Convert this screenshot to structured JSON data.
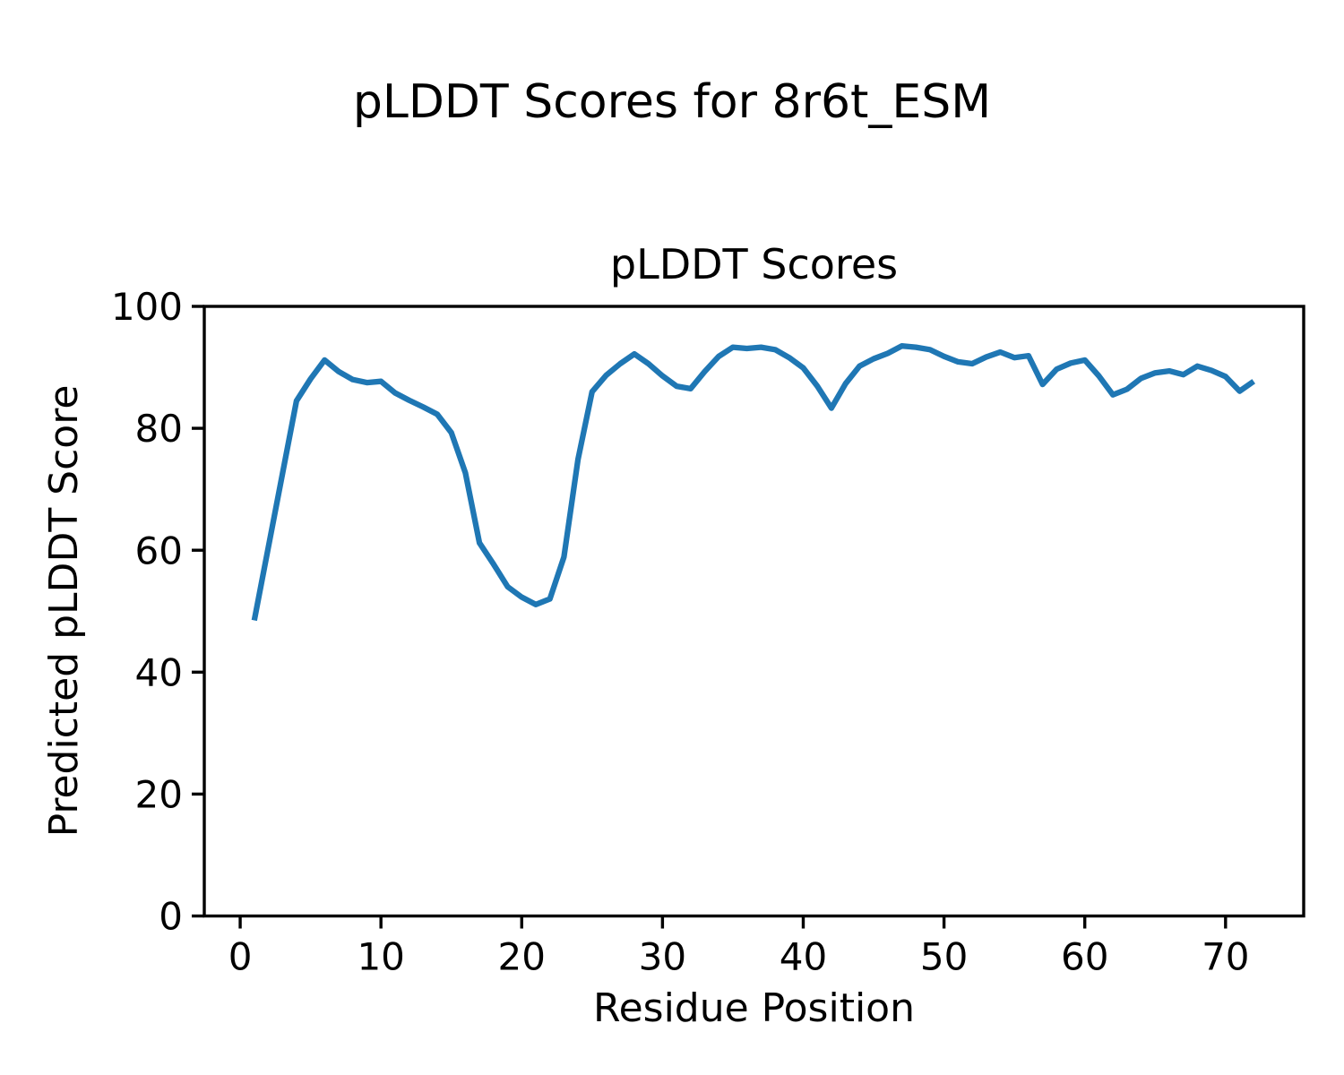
{
  "chart_data": {
    "type": "line",
    "suptitle": "pLDDT Scores for 8r6t_ESM",
    "title": "pLDDT Scores",
    "xlabel": "Residue Position",
    "ylabel": "Predicted pLDDT Score",
    "x_ticks": [
      0,
      10,
      20,
      30,
      40,
      50,
      60,
      70
    ],
    "y_ticks": [
      0,
      20,
      40,
      60,
      80,
      100
    ],
    "xlim": [
      -2.55,
      75.55
    ],
    "ylim": [
      0,
      100
    ],
    "grid": false,
    "legend": "none",
    "line_color": "#1f77b4",
    "axis_color": "#000000",
    "series": [
      {
        "name": "pLDDT",
        "x": [
          1,
          2,
          3,
          4,
          5,
          6,
          7,
          8,
          9,
          10,
          11,
          12,
          13,
          14,
          15,
          16,
          17,
          18,
          19,
          20,
          21,
          22,
          23,
          24,
          25,
          26,
          27,
          28,
          29,
          30,
          31,
          32,
          33,
          34,
          35,
          36,
          37,
          38,
          39,
          40,
          41,
          42,
          43,
          44,
          45,
          46,
          47,
          48,
          49,
          50,
          51,
          52,
          53,
          54,
          55,
          56,
          57,
          58,
          59,
          60,
          61,
          62,
          63,
          64,
          65,
          66,
          67,
          68,
          69,
          70,
          71,
          72
        ],
        "y": [
          48.5,
          60.5,
          72.5,
          84.5,
          88.1,
          91.2,
          89.3,
          88.0,
          87.5,
          87.7,
          85.8,
          84.6,
          83.5,
          82.3,
          79.3,
          72.7,
          61.2,
          57.7,
          54.0,
          52.3,
          51.1,
          52.0,
          58.9,
          74.9,
          86.0,
          88.7,
          90.6,
          92.2,
          90.6,
          88.6,
          86.9,
          86.5,
          89.3,
          91.8,
          93.3,
          93.1,
          93.3,
          92.9,
          91.6,
          89.9,
          86.9,
          83.3,
          87.3,
          90.2,
          91.4,
          92.3,
          93.5,
          93.3,
          92.9,
          91.8,
          90.9,
          90.6,
          91.7,
          92.5,
          91.6,
          91.9,
          87.2,
          89.7,
          90.7,
          91.2,
          88.6,
          85.5,
          86.4,
          88.2,
          89.1,
          89.4,
          88.8,
          90.2,
          89.5,
          88.5,
          86.1,
          87.7
        ]
      }
    ]
  }
}
